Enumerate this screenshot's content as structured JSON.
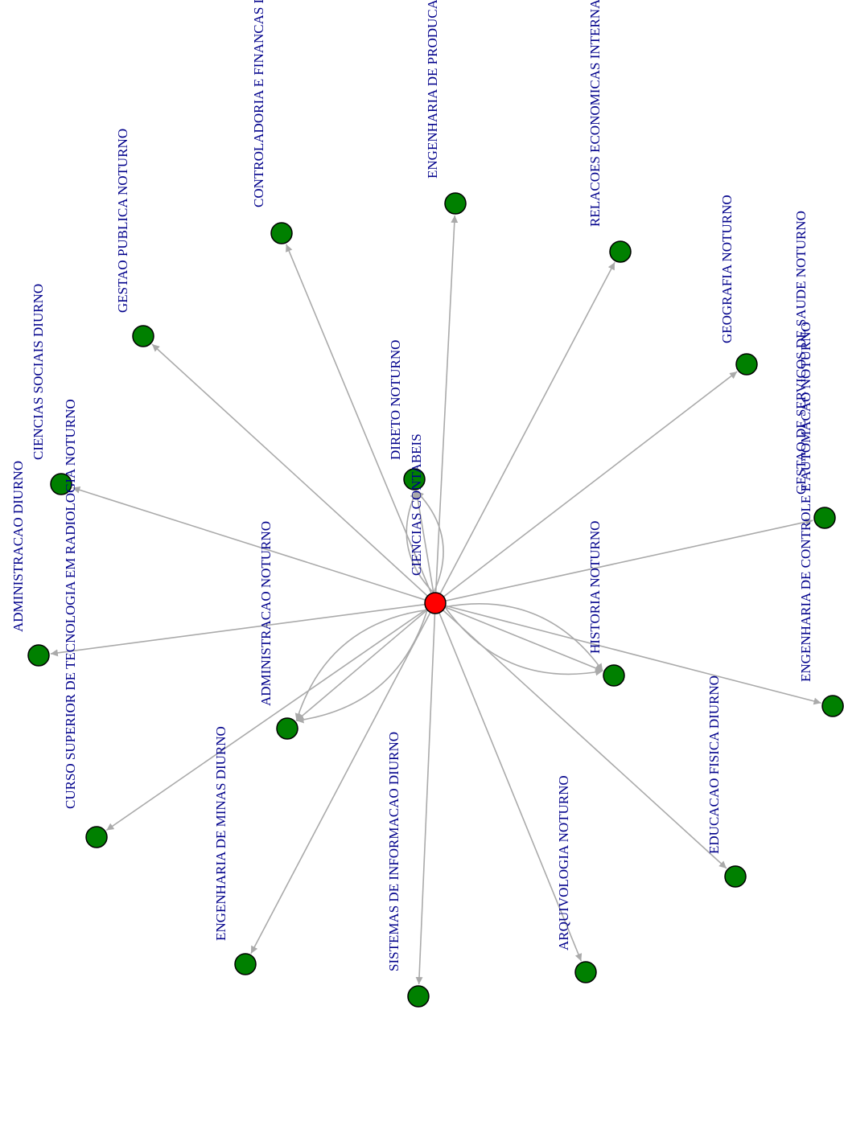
{
  "graph": {
    "center": {
      "id": "center",
      "label": "CIENCIAS CONTABEIS",
      "color": "#ff0000"
    },
    "node_color": "#008000",
    "edge_color": "#aaaaaa",
    "label_color": "#00008b",
    "nodes": [
      {
        "id": "direito",
        "label": "DIRETO NOTURNO",
        "multi": 3
      },
      {
        "id": "contr",
        "label": "CONTROLADORIA E FINANCAS DIURNO"
      },
      {
        "id": "engprod",
        "label": "ENGENHARIA DE PRODUCAO DIURNO"
      },
      {
        "id": "relec",
        "label": "RELACOES ECONOMICAS INTERNACIONAIS NOTURNO"
      },
      {
        "id": "gestpub",
        "label": "GESTAO PUBLICA NOTURNO"
      },
      {
        "id": "geo",
        "label": "GEOGRAFIA NOTURNO"
      },
      {
        "id": "csoc",
        "label": "CIENCIAS SOCIAIS DIURNO"
      },
      {
        "id": "gss",
        "label": "GESTAO DE SERVICOS DE SAUDE NOTURNO"
      },
      {
        "id": "admd",
        "label": "ADMINISTRACAO DIURNO"
      },
      {
        "id": "hist",
        "label": "HISTORIA NOTURNO",
        "multi": 3
      },
      {
        "id": "admn",
        "label": "ADMINISTRACAO NOTURNO",
        "multi": 3
      },
      {
        "id": "engca",
        "label": "ENGENHARIA DE CONTROLE E AUTOMACAO NOTURNO"
      },
      {
        "id": "radio",
        "label": "CURSO SUPERIOR DE TECNOLOGIA EM RADIOLOGIA NOTURNO"
      },
      {
        "id": "edfis",
        "label": "EDUCACAO FISICA DIURNO"
      },
      {
        "id": "minas",
        "label": "ENGENHARIA DE MINAS DIURNO"
      },
      {
        "id": "arq",
        "label": "ARQUIVOLOGIA NOTURNO"
      },
      {
        "id": "si",
        "label": "SISTEMAS DE INFORMACAO DIURNO"
      }
    ]
  }
}
